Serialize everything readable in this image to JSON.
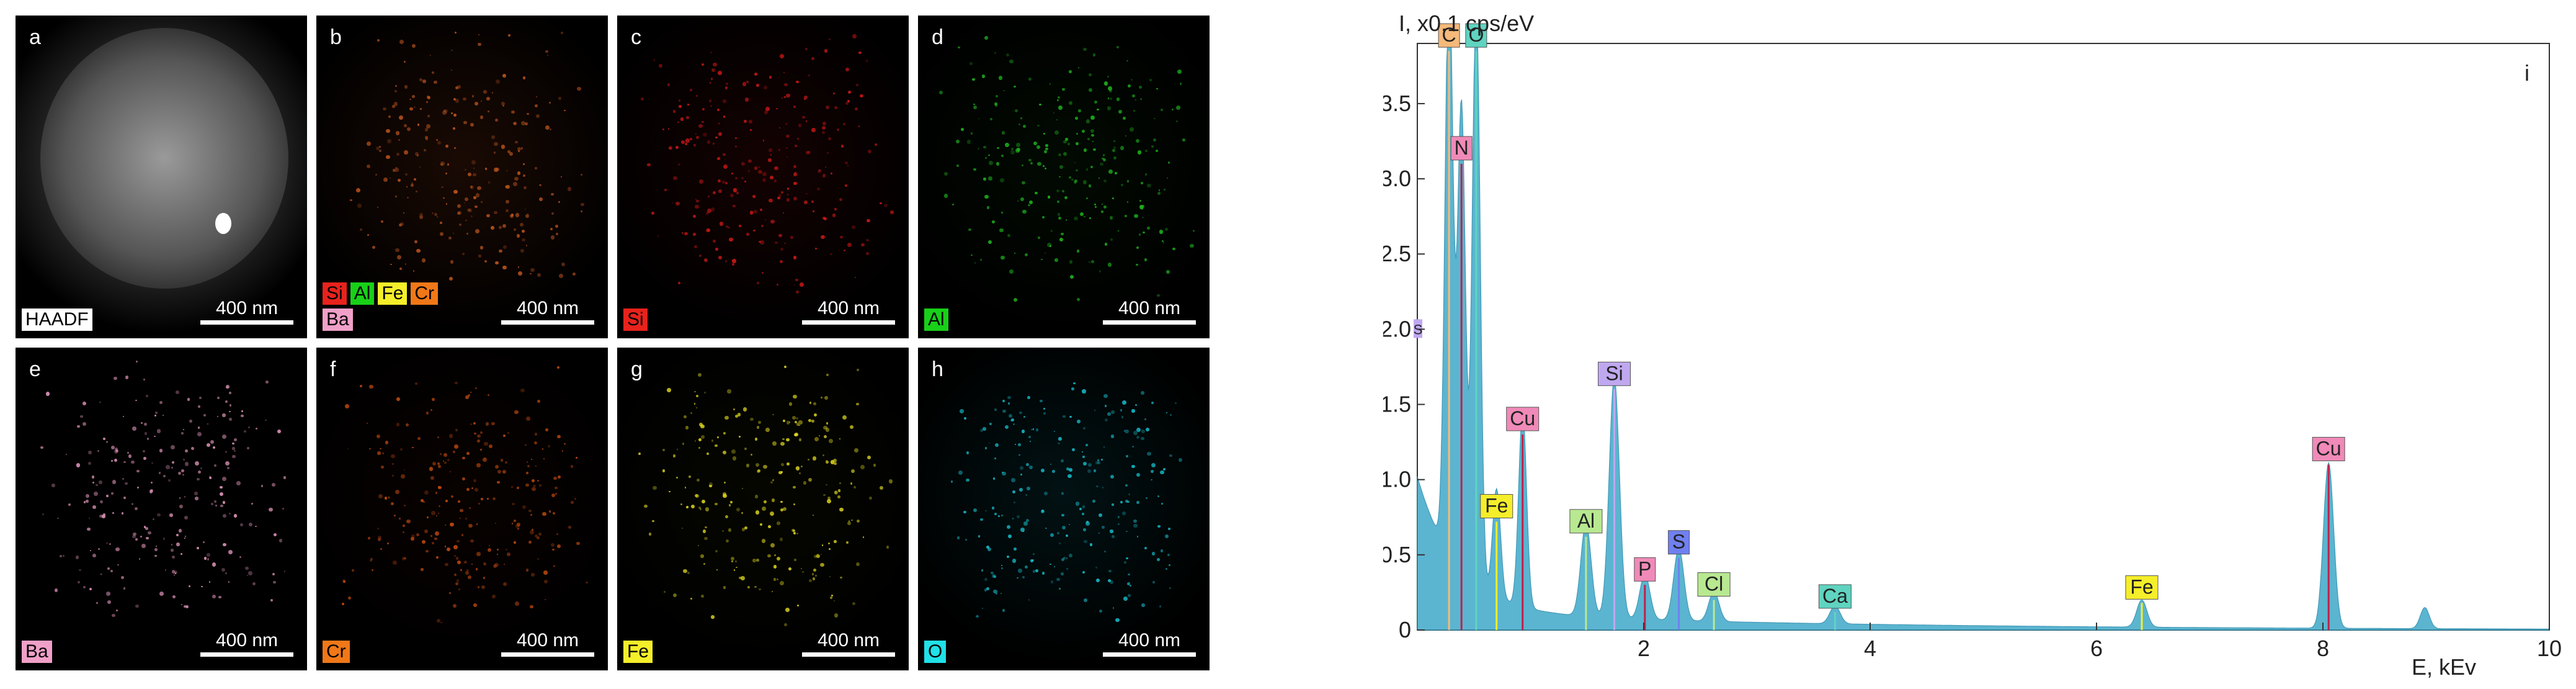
{
  "panels": [
    {
      "letter": "a",
      "tags": [
        {
          "text": "HAADF",
          "color": "#ffffff"
        }
      ],
      "scale": "400 nm",
      "tint": "#e8e8e8",
      "bg": "#6a6a6a"
    },
    {
      "letter": "b",
      "tags": [
        {
          "text": "Si",
          "color": "#e8221c"
        },
        {
          "text": "Al",
          "color": "#18d018"
        },
        {
          "text": "Fe",
          "color": "#f5ee2a"
        },
        {
          "text": "Cr",
          "color": "#f07818"
        },
        {
          "text": "Ba",
          "color": "#f0a0c8"
        }
      ],
      "scale": "400 nm",
      "tint": "#c85a20",
      "bg": "#1a0a04"
    },
    {
      "letter": "c",
      "tags": [
        {
          "text": "Si",
          "color": "#e8221c"
        }
      ],
      "scale": "400 nm",
      "tint": "#d81a18",
      "bg": "#140202"
    },
    {
      "letter": "d",
      "tags": [
        {
          "text": "Al",
          "color": "#18d018"
        }
      ],
      "scale": "400 nm",
      "tint": "#20c020",
      "bg": "#020a02"
    },
    {
      "letter": "e",
      "tags": [
        {
          "text": "Ba",
          "color": "#f0a0c8"
        }
      ],
      "scale": "400 nm",
      "tint": "#f0a0c8",
      "bg": "#000000"
    },
    {
      "letter": "f",
      "tags": [
        {
          "text": "Cr",
          "color": "#f07818"
        }
      ],
      "scale": "400 nm",
      "tint": "#d05010",
      "bg": "#080200"
    },
    {
      "letter": "g",
      "tags": [
        {
          "text": "Fe",
          "color": "#f5ee2a"
        }
      ],
      "scale": "400 nm",
      "tint": "#e8e020",
      "bg": "#060600"
    },
    {
      "letter": "h",
      "tags": [
        {
          "text": "O",
          "color": "#20e0e8"
        }
      ],
      "scale": "400 nm",
      "tint": "#18c8d8",
      "bg": "#021214"
    }
  ],
  "chart_data": {
    "type": "line",
    "panel_letter": "i",
    "ylabel": "I, x0.1 cps/eV",
    "xlabel": "E, kEv",
    "xlim": [
      0,
      10
    ],
    "ylim": [
      0,
      3.9
    ],
    "xticks": [
      "2",
      "4",
      "6",
      "8",
      "10"
    ],
    "yticks": [
      "0",
      "0.5",
      "1.0",
      "1.5",
      "2.0",
      "2.5",
      "3.0",
      "3.5"
    ],
    "colors": {
      "spectrum": "#4aaecb",
      "axis": "#333333"
    },
    "peaks": [
      {
        "label": "C",
        "energy": 0.28,
        "height": 3.9,
        "color": "#f5b97a"
      },
      {
        "label": "O",
        "energy": 0.52,
        "height": 3.9,
        "color": "#5fd4c0"
      },
      {
        "label": "N",
        "energy": 0.39,
        "height": 3.1,
        "color": "#f08ab8"
      },
      {
        "label": "Cu",
        "energy": 0.93,
        "height": 1.3,
        "color": "#f08ab8"
      },
      {
        "label": "Fe",
        "energy": 0.7,
        "height": 0.72,
        "color": "#f5ee2a"
      },
      {
        "label": "Al",
        "energy": 1.49,
        "height": 0.62,
        "color": "#b8e890"
      },
      {
        "label": "Si",
        "energy": 1.74,
        "height": 1.6,
        "color": "#c0a8f0"
      },
      {
        "label": "P",
        "energy": 2.01,
        "height": 0.3,
        "color": "#f08ab8"
      },
      {
        "label": "S",
        "energy": 2.31,
        "height": 0.48,
        "color": "#7080f0"
      },
      {
        "label": "Cl",
        "energy": 2.62,
        "height": 0.2,
        "color": "#b8e890"
      },
      {
        "label": "Ca",
        "energy": 3.69,
        "height": 0.12,
        "color": "#5fd4c0"
      },
      {
        "label": "Fe",
        "energy": 6.4,
        "height": 0.18,
        "color": "#f5ee2a"
      },
      {
        "label": "Cu",
        "energy": 8.05,
        "height": 1.1,
        "color": "#f08ab8"
      }
    ],
    "extra_label": {
      "label": "S",
      "color": "#c0a8f0"
    }
  }
}
